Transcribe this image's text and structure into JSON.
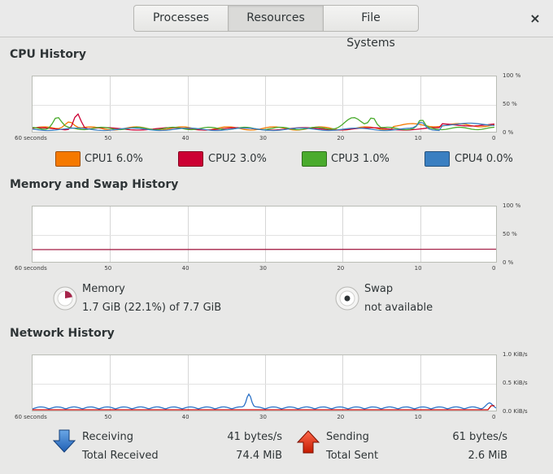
{
  "tabs": [
    {
      "label": "Processes",
      "active": false
    },
    {
      "label": "Resources",
      "active": true
    },
    {
      "label": "File Systems",
      "active": false
    }
  ],
  "close_icon": "×",
  "cpu": {
    "title": "CPU History",
    "x_ticks": [
      "60 seconds",
      "50",
      "40",
      "30",
      "20",
      "10",
      "0"
    ],
    "y_ticks": [
      "100 %",
      "50 %",
      "0 %"
    ],
    "cores": [
      {
        "name": "CPU1",
        "value": "6.0%",
        "color": "#f57900"
      },
      {
        "name": "CPU2",
        "value": "3.0%",
        "color": "#cc0033"
      },
      {
        "name": "CPU3",
        "value": "1.0%",
        "color": "#4aab2d"
      },
      {
        "name": "CPU4",
        "value": "0.0%",
        "color": "#3a7fc1"
      }
    ]
  },
  "memory": {
    "title": "Memory and Swap History",
    "x_ticks": [
      "60 seconds",
      "50",
      "40",
      "30",
      "20",
      "10",
      "0"
    ],
    "y_ticks": [
      "100 %",
      "50 %",
      "0 %"
    ],
    "memory_label": "Memory",
    "memory_value": "1.7 GiB (22.1%) of 7.7 GiB",
    "memory_fraction": 0.221,
    "memory_color": "#a6244a",
    "swap_label": "Swap",
    "swap_value": "not available"
  },
  "network": {
    "title": "Network History",
    "x_ticks": [
      "60 seconds",
      "50",
      "40",
      "30",
      "20",
      "10",
      "0"
    ],
    "y_ticks": [
      "1.0 KiB/s",
      "0.5 KiB/s",
      "0.0 KiB/s"
    ],
    "receiving_label": "Receiving",
    "receiving_rate": "41 bytes/s",
    "total_received_label": "Total Received",
    "total_received": "74.4 MiB",
    "sending_label": "Sending",
    "sending_rate": "61 bytes/s",
    "total_sent_label": "Total Sent",
    "total_sent": "2.6 MiB",
    "receive_color": "#2c72c7",
    "send_color": "#cc0000"
  }
}
